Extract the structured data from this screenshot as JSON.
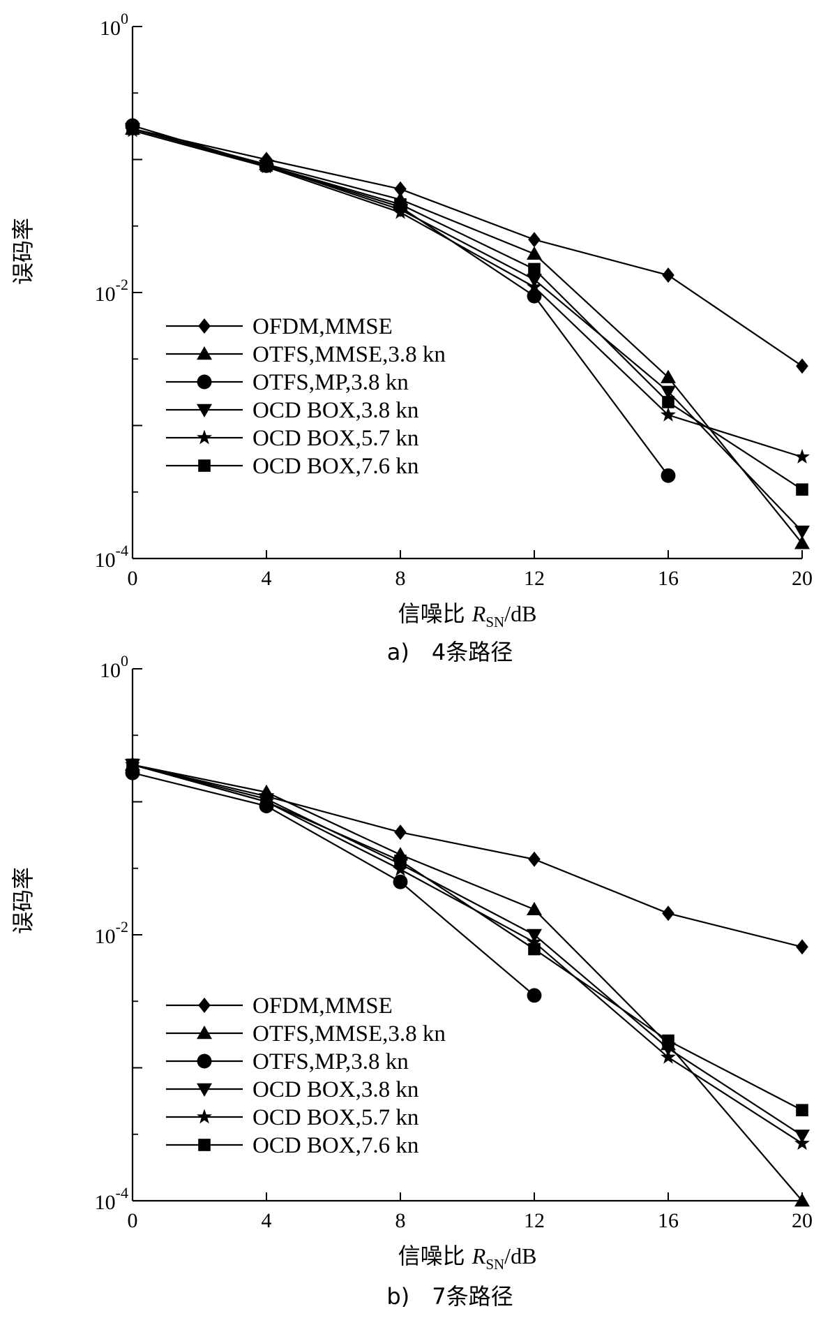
{
  "chart_data": [
    {
      "type": "line",
      "scale_y": "log",
      "x_ticks": [
        "0",
        "4",
        "8",
        "12",
        "16",
        "20"
      ],
      "xlim": [
        0,
        20
      ],
      "ylim": [
        0.0001,
        1
      ],
      "y_ticks": [
        {
          "base": "10",
          "exp": "0"
        },
        {
          "base": "10",
          "exp": "-2"
        },
        {
          "base": "10",
          "exp": "-4"
        }
      ],
      "ylabel": "误码率",
      "xlabel": {
        "main": "信噪比",
        "var": "R",
        "sub": "SN",
        "unit": "/dB"
      },
      "caption": "a)　4条路径",
      "legend_position": "center-left",
      "series": [
        {
          "name": "OFDM,MMSE",
          "marker": "diamond",
          "x": [
            0,
            4,
            8,
            12,
            16,
            20
          ],
          "y": [
            0.17,
            0.1,
            0.06,
            0.025,
            0.0135,
            0.0028
          ]
        },
        {
          "name": "OTFS,MMSE,3.8 kn",
          "marker": "triangle-up",
          "x": [
            0,
            4,
            8,
            12,
            16,
            20
          ],
          "y": [
            0.17,
            0.092,
            0.05,
            0.0195,
            0.0023,
            0.00013
          ]
        },
        {
          "name": "OTFS,MP,3.8 kn",
          "marker": "circle",
          "x": [
            0,
            4,
            8,
            12,
            16
          ],
          "y": [
            0.18,
            0.09,
            0.044,
            0.0094,
            0.00042
          ]
        },
        {
          "name": "OCD BOX,3.8 kn",
          "marker": "triangle-down",
          "x": [
            0,
            4,
            8,
            12,
            16,
            20
          ],
          "y": [
            0.17,
            0.09,
            0.042,
            0.0125,
            0.0018,
            0.00016
          ]
        },
        {
          "name": "OCD BOX,5.7 kn",
          "marker": "star",
          "x": [
            0,
            4,
            8,
            12,
            16,
            20
          ],
          "y": [
            0.165,
            0.088,
            0.04,
            0.011,
            0.0012,
            0.00058
          ]
        },
        {
          "name": "OCD BOX,7.6 kn",
          "marker": "square",
          "x": [
            0,
            4,
            8,
            12,
            16,
            20
          ],
          "y": [
            0.17,
            0.09,
            0.046,
            0.015,
            0.0015,
            0.00033
          ]
        }
      ]
    },
    {
      "type": "line",
      "scale_y": "log",
      "x_ticks": [
        "0",
        "4",
        "8",
        "12",
        "16",
        "20"
      ],
      "xlim": [
        0,
        20
      ],
      "ylim": [
        0.0001,
        1
      ],
      "y_ticks": [
        {
          "base": "10",
          "exp": "0"
        },
        {
          "base": "10",
          "exp": "-2"
        },
        {
          "base": "10",
          "exp": "-4"
        }
      ],
      "ylabel": "误码率",
      "xlabel": {
        "main": "信噪比",
        "var": "R",
        "sub": "SN",
        "unit": "/dB"
      },
      "caption": "b)　7条路径",
      "legend_position": "bottom-left",
      "series": [
        {
          "name": "OFDM,MMSE",
          "marker": "diamond",
          "x": [
            0,
            4,
            8,
            12,
            16,
            20
          ],
          "y": [
            0.19,
            0.11,
            0.059,
            0.037,
            0.0145,
            0.0081
          ]
        },
        {
          "name": "OTFS,MMSE,3.8 kn",
          "marker": "triangle-up",
          "x": [
            0,
            4,
            8,
            12,
            16,
            20
          ],
          "y": [
            0.19,
            0.118,
            0.04,
            0.0155,
            0.0015,
            0.0001
          ]
        },
        {
          "name": "OTFS,MP,3.8 kn",
          "marker": "circle",
          "x": [
            0,
            4,
            8,
            12
          ],
          "y": [
            0.165,
            0.093,
            0.025,
            0.0035
          ]
        },
        {
          "name": "OCD BOX,3.8 kn",
          "marker": "triangle-down",
          "x": [
            0,
            4,
            8,
            12,
            16,
            20
          ],
          "y": [
            0.19,
            0.105,
            0.034,
            0.01,
            0.0014,
            0.00031
          ]
        },
        {
          "name": "OCD BOX,5.7 kn",
          "marker": "star",
          "x": [
            0,
            4,
            8,
            12,
            16,
            20
          ],
          "y": [
            0.19,
            0.1,
            0.031,
            0.0088,
            0.0012,
            0.00027
          ]
        },
        {
          "name": "OCD BOX,7.6 kn",
          "marker": "square",
          "x": [
            0,
            4,
            8,
            12,
            16,
            20
          ],
          "y": [
            0.19,
            0.1,
            0.036,
            0.0078,
            0.0016,
            0.00048
          ]
        }
      ]
    }
  ]
}
